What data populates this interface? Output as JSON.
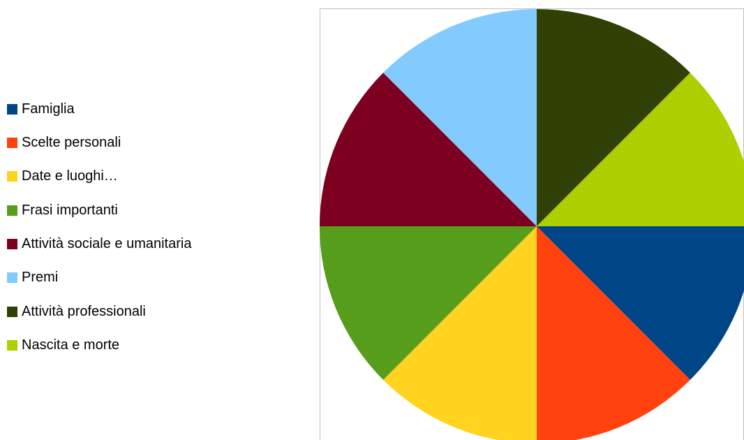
{
  "chart_data": {
    "type": "pie",
    "title": "",
    "legend_position": "left",
    "slices": [
      {
        "label": "Famiglia",
        "value": 12.5,
        "color": "#004586"
      },
      {
        "label": "Scelte personali",
        "value": 12.5,
        "color": "#ff420e"
      },
      {
        "label": "Date e luoghi…",
        "value": 12.5,
        "color": "#ffd320"
      },
      {
        "label": "Frasi importanti",
        "value": 12.5,
        "color": "#579d1c"
      },
      {
        "label": "Attività sociale e umanitaria",
        "value": 12.5,
        "color": "#7e0021"
      },
      {
        "label": "Premi",
        "value": 12.5,
        "color": "#83caff"
      },
      {
        "label": "Attività professionali",
        "value": 12.5,
        "color": "#314004"
      },
      {
        "label": "Nascita e morte",
        "value": 12.5,
        "color": "#aecf00"
      }
    ]
  }
}
